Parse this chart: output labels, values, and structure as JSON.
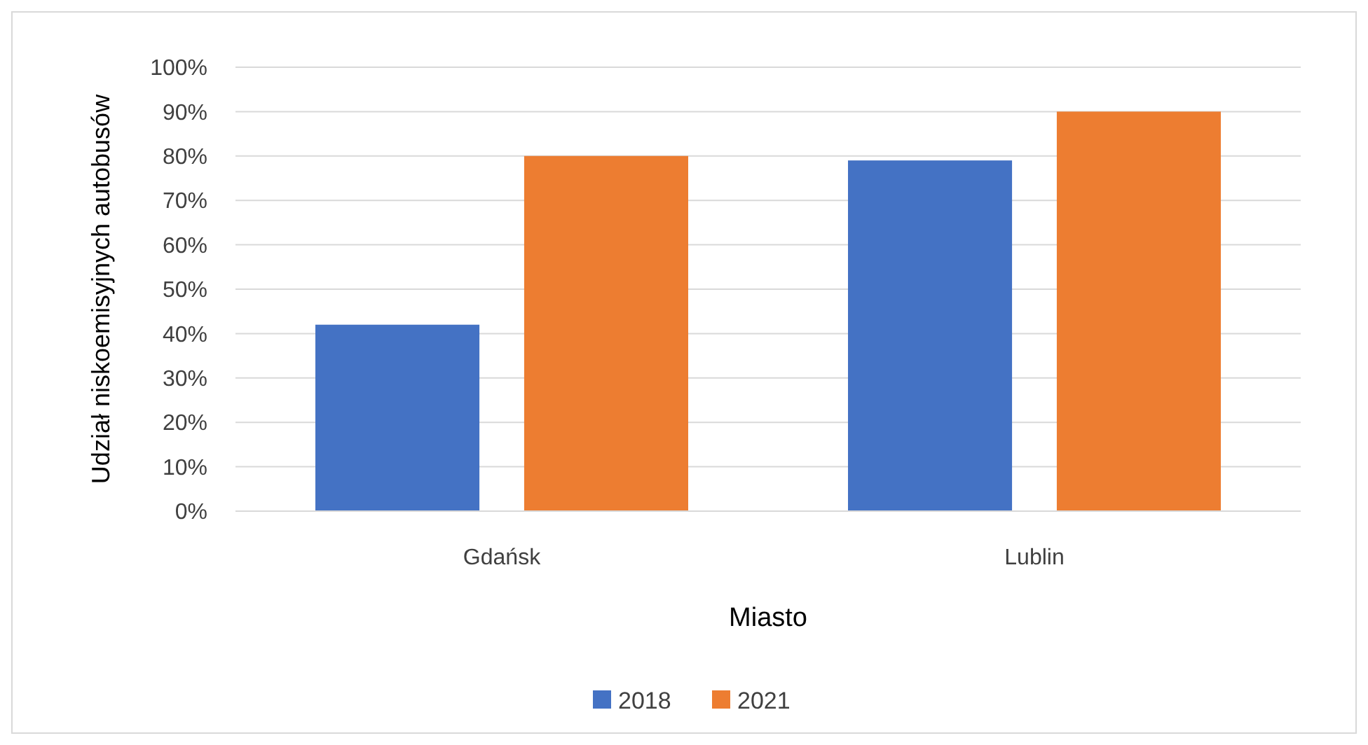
{
  "chart_data": {
    "type": "bar",
    "xlabel": "Miasto",
    "ylabel": "Udział niskoemisyjnych autobusów",
    "categories": [
      "Gdańsk",
      "Lublin"
    ],
    "series": [
      {
        "name": "2018",
        "color": "#4472c4",
        "values": [
          42,
          79
        ]
      },
      {
        "name": "2021",
        "color": "#ed7d31",
        "values": [
          80,
          90
        ]
      }
    ],
    "ylim": [
      0,
      100
    ],
    "yticks": [
      {
        "value": 0,
        "label": "0%"
      },
      {
        "value": 10,
        "label": "10%"
      },
      {
        "value": 20,
        "label": "20%"
      },
      {
        "value": 30,
        "label": "30%"
      },
      {
        "value": 40,
        "label": "40%"
      },
      {
        "value": 50,
        "label": "50%"
      },
      {
        "value": 60,
        "label": "60%"
      },
      {
        "value": 70,
        "label": "70%"
      },
      {
        "value": 80,
        "label": "80%"
      },
      {
        "value": 90,
        "label": "90%"
      },
      {
        "value": 100,
        "label": "100%"
      }
    ],
    "grid": "y",
    "legend": "bottom"
  }
}
